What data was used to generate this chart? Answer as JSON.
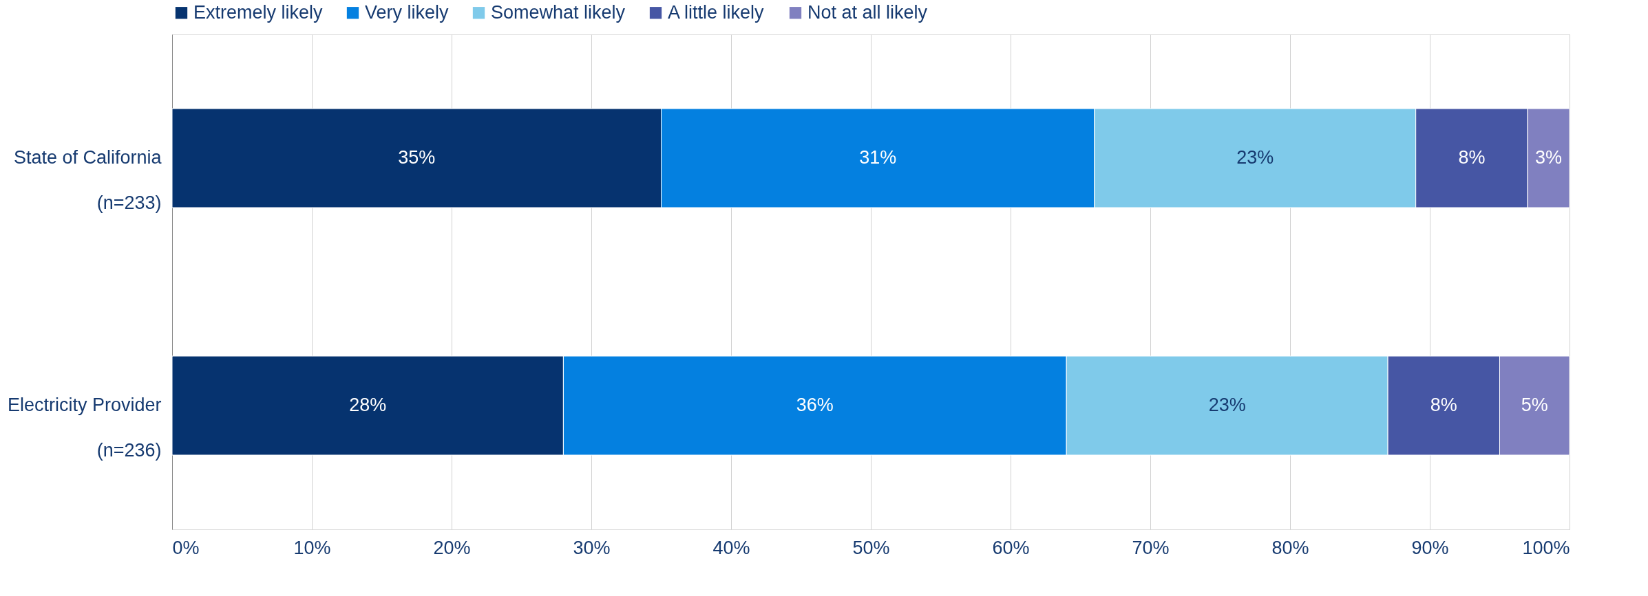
{
  "chart_data": {
    "type": "bar",
    "orientation": "horizontal",
    "stacked": true,
    "categories": [
      "State of California\n(n=233)",
      "Electricity Provider\n(n=236)"
    ],
    "series": [
      {
        "name": "Extremely likely",
        "color": "#06336f",
        "values": [
          35,
          28
        ],
        "value_labels": [
          "35%",
          "28%"
        ]
      },
      {
        "name": "Very likely",
        "color": "#0480e0",
        "values": [
          31,
          36
        ],
        "value_labels": [
          "31%",
          "36%"
        ]
      },
      {
        "name": "Somewhat likely",
        "color": "#7fcaea",
        "values": [
          23,
          23
        ],
        "value_labels": [
          "23%",
          "23%"
        ]
      },
      {
        "name": "A little likely",
        "color": "#4656a4",
        "values": [
          8,
          8
        ],
        "value_labels": [
          "8%",
          "8%"
        ]
      },
      {
        "name": "Not at all likely",
        "color": "#8080c0",
        "values": [
          3,
          5
        ],
        "value_labels": [
          "3%",
          "5%"
        ]
      }
    ],
    "xlim": [
      0,
      100
    ],
    "xticks": [
      {
        "value": 0,
        "label": "0%"
      },
      {
        "value": 10,
        "label": "10%"
      },
      {
        "value": 20,
        "label": "20%"
      },
      {
        "value": 30,
        "label": "30%"
      },
      {
        "value": 40,
        "label": "40%"
      },
      {
        "value": 50,
        "label": "50%"
      },
      {
        "value": 60,
        "label": "60%"
      },
      {
        "value": 70,
        "label": "70%"
      },
      {
        "value": 80,
        "label": "80%"
      },
      {
        "value": 90,
        "label": "90%"
      },
      {
        "value": 100,
        "label": "100%"
      }
    ],
    "grid": "x",
    "legend": "top"
  }
}
